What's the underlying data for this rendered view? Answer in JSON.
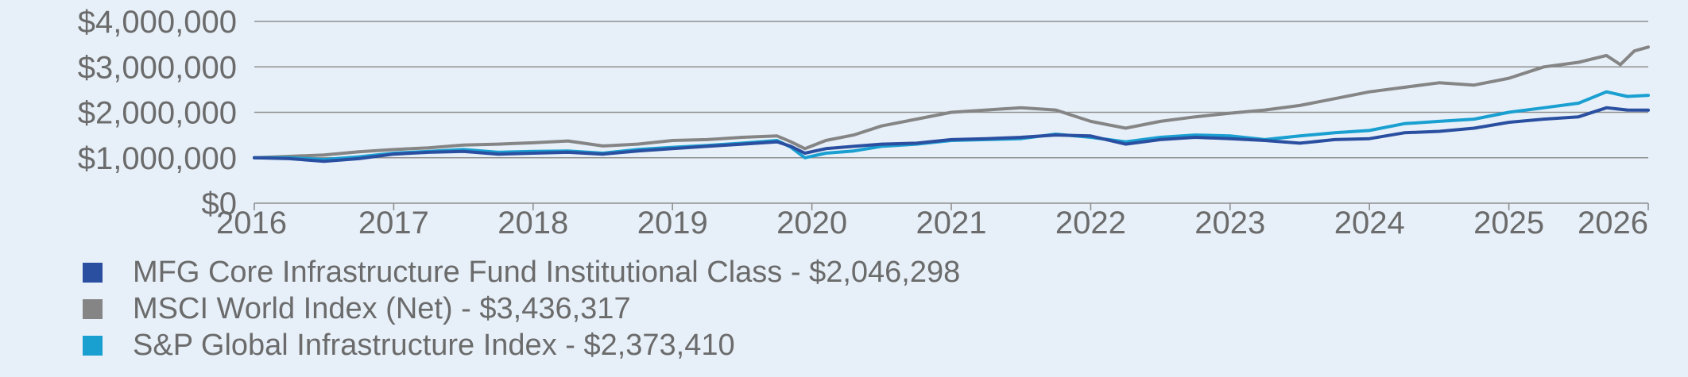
{
  "chart_data": {
    "type": "line",
    "title": "",
    "xlabel": "",
    "ylabel": "",
    "xlim": [
      2016,
      2026
    ],
    "ylim": [
      0,
      4000000
    ],
    "grid": "horizontal",
    "legend_position": "bottom",
    "x_ticks": [
      {
        "value": 2016,
        "label": "2016"
      },
      {
        "value": 2017,
        "label": "2017"
      },
      {
        "value": 2018,
        "label": "2018"
      },
      {
        "value": 2019,
        "label": "2019"
      },
      {
        "value": 2020,
        "label": "2020"
      },
      {
        "value": 2021,
        "label": "2021"
      },
      {
        "value": 2022,
        "label": "2022"
      },
      {
        "value": 2023,
        "label": "2023"
      },
      {
        "value": 2024,
        "label": "2024"
      },
      {
        "value": 2025,
        "label": "2025"
      },
      {
        "value": 2026,
        "label": "2026"
      }
    ],
    "y_ticks": [
      {
        "value": 0,
        "label": "$0"
      },
      {
        "value": 1000000,
        "label": "$1,000,000"
      },
      {
        "value": 2000000,
        "label": "$2,000,000"
      },
      {
        "value": 3000000,
        "label": "$3,000,000"
      },
      {
        "value": 4000000,
        "label": "$4,000,000"
      }
    ],
    "series": [
      {
        "name": "MFG Core Infrastructure Fund Institutional Class - $2,046,298",
        "color": "#2a4fa0",
        "points": [
          [
            2016.0,
            1000000
          ],
          [
            2016.25,
            980000
          ],
          [
            2016.5,
            920000
          ],
          [
            2016.75,
            980000
          ],
          [
            2017.0,
            1080000
          ],
          [
            2017.25,
            1120000
          ],
          [
            2017.5,
            1140000
          ],
          [
            2017.75,
            1080000
          ],
          [
            2018.0,
            1100000
          ],
          [
            2018.25,
            1120000
          ],
          [
            2018.5,
            1080000
          ],
          [
            2018.75,
            1150000
          ],
          [
            2019.0,
            1200000
          ],
          [
            2019.25,
            1250000
          ],
          [
            2019.5,
            1300000
          ],
          [
            2019.75,
            1350000
          ],
          [
            2019.85,
            1250000
          ],
          [
            2019.95,
            1100000
          ],
          [
            2020.1,
            1200000
          ],
          [
            2020.3,
            1250000
          ],
          [
            2020.5,
            1300000
          ],
          [
            2020.75,
            1320000
          ],
          [
            2021.0,
            1400000
          ],
          [
            2021.25,
            1420000
          ],
          [
            2021.5,
            1450000
          ],
          [
            2021.75,
            1500000
          ],
          [
            2022.0,
            1480000
          ],
          [
            2022.25,
            1300000
          ],
          [
            2022.5,
            1400000
          ],
          [
            2022.75,
            1450000
          ],
          [
            2023.0,
            1420000
          ],
          [
            2023.25,
            1380000
          ],
          [
            2023.5,
            1320000
          ],
          [
            2023.75,
            1400000
          ],
          [
            2024.0,
            1420000
          ],
          [
            2024.25,
            1550000
          ],
          [
            2024.5,
            1580000
          ],
          [
            2024.75,
            1650000
          ],
          [
            2025.0,
            1780000
          ],
          [
            2025.25,
            1850000
          ],
          [
            2025.5,
            1900000
          ],
          [
            2025.7,
            2100000
          ],
          [
            2025.85,
            2050000
          ],
          [
            2026.0,
            2046298
          ]
        ]
      },
      {
        "name": "MSCI World Index (Net) - $3,436,317",
        "color": "#858585",
        "points": [
          [
            2016.0,
            1000000
          ],
          [
            2016.25,
            1030000
          ],
          [
            2016.5,
            1060000
          ],
          [
            2016.75,
            1130000
          ],
          [
            2017.0,
            1180000
          ],
          [
            2017.25,
            1220000
          ],
          [
            2017.5,
            1280000
          ],
          [
            2017.75,
            1300000
          ],
          [
            2018.0,
            1330000
          ],
          [
            2018.25,
            1370000
          ],
          [
            2018.5,
            1260000
          ],
          [
            2018.75,
            1300000
          ],
          [
            2019.0,
            1380000
          ],
          [
            2019.25,
            1400000
          ],
          [
            2019.5,
            1450000
          ],
          [
            2019.75,
            1480000
          ],
          [
            2019.85,
            1350000
          ],
          [
            2019.95,
            1200000
          ],
          [
            2020.1,
            1380000
          ],
          [
            2020.3,
            1500000
          ],
          [
            2020.5,
            1700000
          ],
          [
            2020.75,
            1850000
          ],
          [
            2021.0,
            2000000
          ],
          [
            2021.25,
            2050000
          ],
          [
            2021.5,
            2100000
          ],
          [
            2021.75,
            2050000
          ],
          [
            2022.0,
            1800000
          ],
          [
            2022.25,
            1650000
          ],
          [
            2022.5,
            1800000
          ],
          [
            2022.75,
            1900000
          ],
          [
            2023.0,
            1980000
          ],
          [
            2023.25,
            2050000
          ],
          [
            2023.5,
            2150000
          ],
          [
            2023.75,
            2300000
          ],
          [
            2024.0,
            2450000
          ],
          [
            2024.25,
            2550000
          ],
          [
            2024.5,
            2650000
          ],
          [
            2024.75,
            2600000
          ],
          [
            2025.0,
            2750000
          ],
          [
            2025.25,
            3000000
          ],
          [
            2025.5,
            3100000
          ],
          [
            2025.7,
            3250000
          ],
          [
            2025.8,
            3050000
          ],
          [
            2025.9,
            3350000
          ],
          [
            2026.0,
            3436317
          ]
        ]
      },
      {
        "name": "S&P Global Infrastructure Index - $2,373,410",
        "color": "#1a9fd1",
        "points": [
          [
            2016.0,
            1000000
          ],
          [
            2016.25,
            1000000
          ],
          [
            2016.5,
            960000
          ],
          [
            2016.75,
            1020000
          ],
          [
            2017.0,
            1100000
          ],
          [
            2017.25,
            1140000
          ],
          [
            2017.5,
            1180000
          ],
          [
            2017.75,
            1120000
          ],
          [
            2018.0,
            1140000
          ],
          [
            2018.25,
            1150000
          ],
          [
            2018.5,
            1100000
          ],
          [
            2018.75,
            1180000
          ],
          [
            2019.0,
            1230000
          ],
          [
            2019.25,
            1270000
          ],
          [
            2019.5,
            1320000
          ],
          [
            2019.75,
            1380000
          ],
          [
            2019.85,
            1230000
          ],
          [
            2019.95,
            1000000
          ],
          [
            2020.1,
            1100000
          ],
          [
            2020.3,
            1150000
          ],
          [
            2020.5,
            1250000
          ],
          [
            2020.75,
            1300000
          ],
          [
            2021.0,
            1380000
          ],
          [
            2021.25,
            1400000
          ],
          [
            2021.5,
            1420000
          ],
          [
            2021.75,
            1520000
          ],
          [
            2022.0,
            1450000
          ],
          [
            2022.25,
            1350000
          ],
          [
            2022.5,
            1450000
          ],
          [
            2022.75,
            1500000
          ],
          [
            2023.0,
            1480000
          ],
          [
            2023.25,
            1400000
          ],
          [
            2023.5,
            1480000
          ],
          [
            2023.75,
            1550000
          ],
          [
            2024.0,
            1600000
          ],
          [
            2024.25,
            1750000
          ],
          [
            2024.5,
            1800000
          ],
          [
            2024.75,
            1850000
          ],
          [
            2025.0,
            2000000
          ],
          [
            2025.25,
            2100000
          ],
          [
            2025.5,
            2200000
          ],
          [
            2025.7,
            2450000
          ],
          [
            2025.85,
            2350000
          ],
          [
            2026.0,
            2373410
          ]
        ]
      }
    ]
  }
}
